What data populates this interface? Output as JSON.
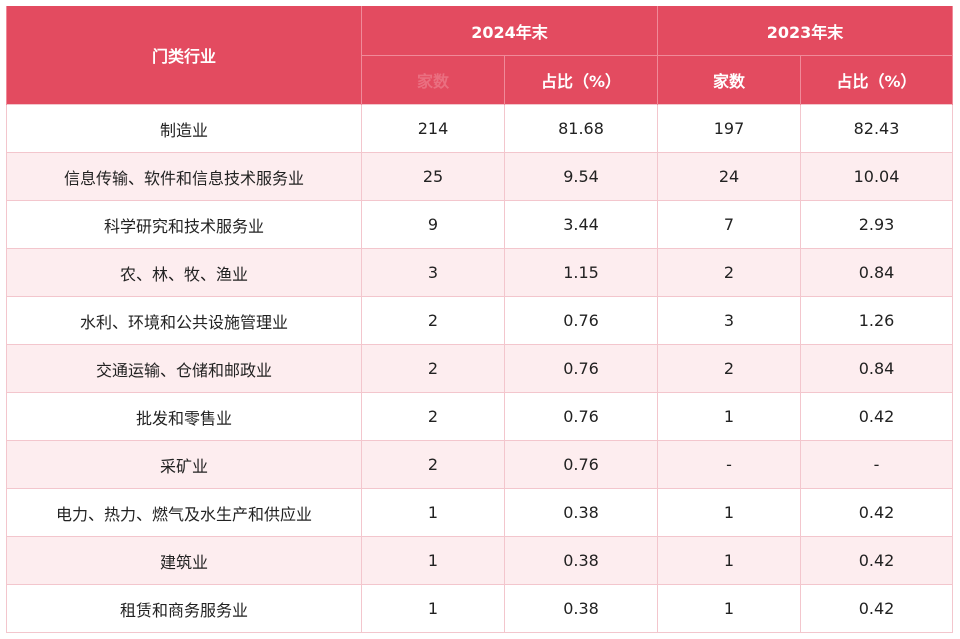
{
  "header": {
    "industry_label": "门类行业",
    "group_2024": "2024年末",
    "group_2023": "2023年末",
    "count_2024_label": "家数",
    "share_2024_label": "占比（%）",
    "count_2023_label": "家数",
    "share_2023_label": "占比（%）"
  },
  "colors": {
    "header_bg": "#e34b60",
    "stripe_bg": "#fdedef",
    "border": "#f3c6cd"
  },
  "rows": [
    {
      "industry": "制造业",
      "count_2024": "214",
      "share_2024": "81.68",
      "count_2023": "197",
      "share_2023": "82.43"
    },
    {
      "industry": "信息传输、软件和信息技术服务业",
      "count_2024": "25",
      "share_2024": "9.54",
      "count_2023": "24",
      "share_2023": "10.04"
    },
    {
      "industry": "科学研究和技术服务业",
      "count_2024": "9",
      "share_2024": "3.44",
      "count_2023": "7",
      "share_2023": "2.93"
    },
    {
      "industry": "农、林、牧、渔业",
      "count_2024": "3",
      "share_2024": "1.15",
      "count_2023": "2",
      "share_2023": "0.84"
    },
    {
      "industry": "水利、环境和公共设施管理业",
      "count_2024": "2",
      "share_2024": "0.76",
      "count_2023": "3",
      "share_2023": "1.26"
    },
    {
      "industry": "交通运输、仓储和邮政业",
      "count_2024": "2",
      "share_2024": "0.76",
      "count_2023": "2",
      "share_2023": "0.84"
    },
    {
      "industry": "批发和零售业",
      "count_2024": "2",
      "share_2024": "0.76",
      "count_2023": "1",
      "share_2023": "0.42"
    },
    {
      "industry": "采矿业",
      "count_2024": "2",
      "share_2024": "0.76",
      "count_2023": "-",
      "share_2023": "-"
    },
    {
      "industry": "电力、热力、燃气及水生产和供应业",
      "count_2024": "1",
      "share_2024": "0.38",
      "count_2023": "1",
      "share_2023": "0.42"
    },
    {
      "industry": "建筑业",
      "count_2024": "1",
      "share_2024": "0.38",
      "count_2023": "1",
      "share_2023": "0.42"
    },
    {
      "industry": "租赁和商务服务业",
      "count_2024": "1",
      "share_2024": "0.38",
      "count_2023": "1",
      "share_2023": "0.42"
    }
  ]
}
